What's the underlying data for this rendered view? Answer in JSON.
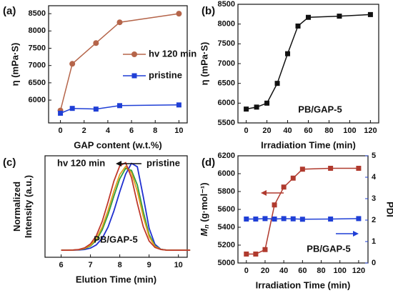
{
  "chart_data": [
    {
      "type": "line",
      "panel": "(a)",
      "xlabel": "GAP content (w.t.%)",
      "ylabel": "η (mPa·S)",
      "x": [
        0,
        1,
        3,
        5,
        10
      ],
      "xlim": [
        -1,
        10.7
      ],
      "xticks": [
        0,
        2,
        4,
        6,
        8,
        10
      ],
      "ylim": [
        5340,
        8730
      ],
      "yticks": [
        6000,
        6500,
        7000,
        7500,
        8000,
        8500
      ],
      "series": [
        {
          "name": "hv 120 min",
          "color": "#b5654a",
          "marker": "circle",
          "values": [
            5700,
            7050,
            7650,
            8250,
            8500
          ]
        },
        {
          "name": "pristine",
          "color": "#1f3fd6",
          "marker": "square",
          "values": [
            5620,
            5760,
            5740,
            5840,
            5860
          ]
        }
      ],
      "legend": "right"
    },
    {
      "type": "line",
      "panel": "(b)",
      "xlabel": "Irradiation Time (min)",
      "ylabel": "η (mPa·S)",
      "x": [
        0,
        10,
        20,
        30,
        40,
        50,
        60,
        90,
        120
      ],
      "xlim": [
        -8,
        128
      ],
      "xticks": [
        0,
        20,
        40,
        60,
        80,
        100,
        120
      ],
      "ylim": [
        5500,
        8500
      ],
      "yticks": [
        5500,
        6000,
        6500,
        7000,
        7500,
        8000,
        8500
      ],
      "series": [
        {
          "color": "#111111",
          "marker": "square",
          "values": [
            5850,
            5900,
            6000,
            6500,
            7250,
            7950,
            8170,
            8200,
            8240
          ]
        }
      ],
      "annotations": [
        "PB/GAP-5"
      ]
    },
    {
      "type": "line",
      "panel": "(c)",
      "xlabel": "Elution Time (min)",
      "ylabel": "Normalized Intensity (a.u.)",
      "x": [
        6.0,
        6.2,
        6.4,
        6.6,
        6.8,
        7.0,
        7.2,
        7.4,
        7.6,
        7.8,
        8.0,
        8.2,
        8.4,
        8.6,
        8.8,
        9.0,
        9.2,
        9.4,
        9.6,
        9.8,
        10.0,
        10.2,
        10.4
      ],
      "xlim": [
        5.45,
        10.3
      ],
      "xticks": [
        6,
        7,
        8,
        9,
        10
      ],
      "ylim": [
        -0.08,
        1.07
      ],
      "series": [
        {
          "name": "pristine",
          "color": "#1f2fd0",
          "values": [
            0,
            0,
            0.001,
            0.003,
            0.008,
            0.024,
            0.061,
            0.135,
            0.262,
            0.445,
            0.662,
            0.862,
            0.984,
            0.946,
            0.607,
            0.249,
            0.066,
            0.011,
            0.001,
            0,
            0,
            0,
            0
          ]
        },
        {
          "color": "#2e9e3a",
          "values": [
            0,
            0,
            0.002,
            0.006,
            0.017,
            0.048,
            0.113,
            0.23,
            0.404,
            0.614,
            0.809,
            0.927,
            0.904,
            0.739,
            0.437,
            0.177,
            0.049,
            0.01,
            0.001,
            0,
            0,
            0,
            0
          ]
        },
        {
          "color": "#e0a020",
          "values": [
            0,
            0,
            0.002,
            0.006,
            0.02,
            0.055,
            0.13,
            0.262,
            0.451,
            0.67,
            0.858,
            0.949,
            0.877,
            0.669,
            0.38,
            0.153,
            0.043,
            0.009,
            0.001,
            0,
            0,
            0,
            0
          ]
        },
        {
          "name": "hv 120 min",
          "color": "#c0392b",
          "values": [
            0,
            0,
            0.002,
            0.008,
            0.026,
            0.071,
            0.164,
            0.325,
            0.546,
            0.783,
            0.956,
            0.992,
            0.823,
            0.531,
            0.267,
            0.105,
            0.032,
            0.008,
            0.001,
            0,
            0,
            0,
            0
          ]
        }
      ],
      "annotations": [
        "PB/GAP-5"
      ]
    },
    {
      "type": "line",
      "panel": "(d)",
      "xlabel": "Irradiation Time (min)",
      "ylabel": [
        "M",
        "n",
        " (g·mol⁻¹)"
      ],
      "y2label": "PDI",
      "x": [
        0,
        10,
        20,
        30,
        40,
        50,
        60,
        90,
        120
      ],
      "xlim": [
        -9,
        130
      ],
      "xticks": [
        0,
        20,
        40,
        60,
        80,
        100,
        120
      ],
      "ylim": [
        5000,
        6200
      ],
      "yticks": [
        5000,
        5200,
        5400,
        5600,
        5800,
        6000,
        6200
      ],
      "y2lim": [
        0,
        5
      ],
      "y2ticks": [
        0,
        1,
        2,
        3,
        4,
        5
      ],
      "series": [
        {
          "color": "#b03a2e",
          "marker": "square",
          "values": [
            5100,
            5100,
            5150,
            5650,
            5850,
            5950,
            6050,
            6060,
            6060
          ]
        },
        {
          "color": "#1f3fd6",
          "marker": "square",
          "axis": "y2",
          "values": [
            2.05,
            2.05,
            2.07,
            2.05,
            2.07,
            2.06,
            2.04,
            2.05,
            2.07
          ]
        }
      ],
      "annotations": [
        "PB/GAP-5"
      ]
    }
  ]
}
